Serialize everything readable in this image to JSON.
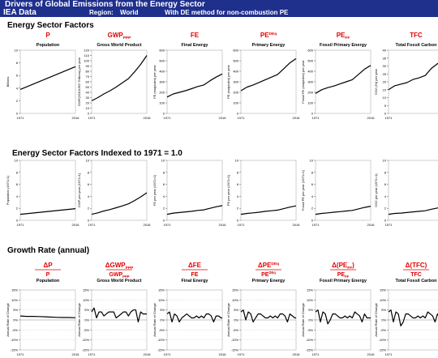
{
  "header": {
    "title": "Drivers of Global Emissions from the Energy Sector",
    "source": "IEA Data",
    "region_label": "Region:",
    "region_value": "World",
    "method": "With DE method for non-combustion PE"
  },
  "sections": {
    "factors": "Energy Sector Factors",
    "indexed": "Energy Sector Factors Indexed to 1971 = 1.0",
    "growth": "Growth Rate (annual)"
  },
  "colors": {
    "header_bg": "#1f2f8c",
    "symbol_red": "#e00000",
    "line": "#000000",
    "zero_line": "#888888"
  },
  "columns": [
    {
      "sym": "P",
      "sub": "",
      "sup": "",
      "name": "Population",
      "g_sym": "P",
      "g_sub": "",
      "g_sup": "",
      "g_pre": "",
      "g_post": ""
    },
    {
      "sym": "GWP",
      "sub": "PPP",
      "sup": "",
      "name": "Gross World Product",
      "g_sym": "GWP",
      "g_sub": "PPP",
      "g_sup": "",
      "g_pre": "",
      "g_post": ""
    },
    {
      "sym": "FE",
      "sub": "",
      "sup": "",
      "name": "Final Energy",
      "g_sym": "FE",
      "g_sub": "",
      "g_sup": "",
      "g_pre": "",
      "g_post": ""
    },
    {
      "sym": "PE",
      "sub": "",
      "sup": "DEq",
      "name": "Primary Energy",
      "g_sym": "PE",
      "g_sub": "",
      "g_sup": "DEq",
      "g_pre": "",
      "g_post": ""
    },
    {
      "sym": "PE",
      "sub": "FF",
      "sup": "",
      "name": "Fossil Primary Energy",
      "g_sym": "PE",
      "g_sub": "FF",
      "g_sup": "",
      "g_pre": "(",
      "g_post": ")"
    },
    {
      "sym": "TFC",
      "sub": "",
      "sup": "",
      "name": "Total Fossil Carbon",
      "g_sym": "TFC",
      "g_sub": "",
      "g_sup": "",
      "g_pre": "(",
      "g_post": ")"
    }
  ],
  "delta": "Δ",
  "chart_data": [
    {
      "type": "line",
      "row": "factors",
      "ylabel": "Billions",
      "ylim": [
        0,
        10
      ],
      "yticks": [
        "0",
        "2",
        "4",
        "6",
        "8",
        "10"
      ],
      "xticks": [
        "1971",
        "2016"
      ],
      "x": [
        1971,
        2016
      ],
      "series": [
        {
          "values": [
            3.8,
            7.4
          ]
        }
      ]
    },
    {
      "type": "line",
      "row": "factors",
      "ylabel": "GWP(2010USD Trillions) per year",
      "ylim": [
        0,
        120
      ],
      "yticks": [
        "0",
        "10",
        "20",
        "30",
        "40",
        "50",
        "60",
        "70",
        "80",
        "90",
        "100",
        "110",
        "120"
      ],
      "xticks": [
        "1971",
        "2016"
      ],
      "x": [
        1971,
        1976,
        1981,
        1986,
        1991,
        1996,
        2001,
        2006,
        2011,
        2016
      ],
      "series": [
        {
          "values": [
            24,
            30,
            37,
            43,
            50,
            58,
            66,
            79,
            93,
            110
          ]
        }
      ]
    },
    {
      "type": "line",
      "row": "factors",
      "ylabel": "FE (exajoules) per year",
      "ylim": [
        0,
        600
      ],
      "yticks": [
        "0",
        "100",
        "200",
        "300",
        "400",
        "500",
        "600"
      ],
      "xticks": [
        "1971",
        "2016"
      ],
      "x": [
        1971,
        1976,
        1981,
        1986,
        1991,
        1996,
        2001,
        2006,
        2011,
        2016
      ],
      "series": [
        {
          "values": [
            155,
            185,
            200,
            215,
            235,
            255,
            270,
            310,
            345,
            375
          ]
        }
      ]
    },
    {
      "type": "line",
      "row": "factors",
      "ylabel": "PE (exajoules) per year",
      "ylim": [
        0,
        600
      ],
      "yticks": [
        "0",
        "100",
        "200",
        "300",
        "400",
        "500",
        "600"
      ],
      "xticks": [
        "1971",
        "2016"
      ],
      "x": [
        1971,
        1976,
        1981,
        1986,
        1991,
        1996,
        2001,
        2006,
        2011,
        2016
      ],
      "series": [
        {
          "values": [
            215,
            250,
            270,
            295,
            320,
            345,
            370,
            425,
            480,
            520
          ]
        }
      ]
    },
    {
      "type": "line",
      "row": "factors",
      "ylabel": "Fossil PE (exajoules) per year",
      "ylim": [
        0,
        600
      ],
      "yticks": [
        "0",
        "100",
        "200",
        "300",
        "400",
        "500",
        "600"
      ],
      "xticks": [
        "1971",
        "2016"
      ],
      "x": [
        1971,
        1976,
        1981,
        1986,
        1991,
        1996,
        2001,
        2006,
        2011,
        2016
      ],
      "series": [
        {
          "values": [
            190,
            225,
            245,
            260,
            280,
            300,
            320,
            370,
            420,
            455
          ]
        }
      ]
    },
    {
      "type": "line",
      "row": "factors",
      "ylabel": "CO2 (Gt) per year",
      "ylim": [
        0,
        40
      ],
      "yticks": [
        "0",
        "5",
        "10",
        "15",
        "20",
        "25",
        "30",
        "35",
        "40"
      ],
      "xticks": [
        "1971",
        "2016"
      ],
      "x": [
        1971,
        1976,
        1981,
        1986,
        1991,
        1996,
        2001,
        2006,
        2011,
        2016
      ],
      "series": [
        {
          "values": [
            15,
            17.5,
            18.5,
            19.5,
            21.5,
            22.5,
            24,
            28.5,
            31.5,
            33
          ]
        }
      ]
    },
    {
      "type": "line",
      "row": "indexed",
      "ylabel": "Population (1971=1)",
      "ylim": [
        0,
        10
      ],
      "yticks": [
        "0",
        "2",
        "4",
        "6",
        "8",
        "10"
      ],
      "xticks": [
        "1971",
        "2016"
      ],
      "x": [
        1971,
        2016
      ],
      "series": [
        {
          "values": [
            1.0,
            1.95
          ]
        }
      ]
    },
    {
      "type": "line",
      "row": "indexed",
      "ylabel": "GWP per year (1971=1)",
      "ylim": [
        0,
        10
      ],
      "yticks": [
        "0",
        "2",
        "4",
        "6",
        "8",
        "10"
      ],
      "xticks": [
        "1971",
        "2016"
      ],
      "x": [
        1971,
        1976,
        1981,
        1986,
        1991,
        1996,
        2001,
        2006,
        2011,
        2016
      ],
      "series": [
        {
          "values": [
            1.0,
            1.25,
            1.55,
            1.8,
            2.1,
            2.4,
            2.75,
            3.3,
            3.9,
            4.6
          ]
        }
      ]
    },
    {
      "type": "line",
      "row": "indexed",
      "ylabel": "FE per year (1971=1)",
      "ylim": [
        0,
        10
      ],
      "yticks": [
        "0",
        "2",
        "4",
        "6",
        "8",
        "10"
      ],
      "xticks": [
        "1971",
        "2016"
      ],
      "x": [
        1971,
        1976,
        1981,
        1986,
        1991,
        1996,
        2001,
        2006,
        2011,
        2016
      ],
      "series": [
        {
          "values": [
            1.0,
            1.2,
            1.3,
            1.4,
            1.5,
            1.65,
            1.75,
            2.0,
            2.25,
            2.45
          ]
        }
      ]
    },
    {
      "type": "line",
      "row": "indexed",
      "ylabel": "PE per year (1971=1)",
      "ylim": [
        0,
        10
      ],
      "yticks": [
        "0",
        "2",
        "4",
        "6",
        "8",
        "10"
      ],
      "xticks": [
        "1971",
        "2016"
      ],
      "x": [
        1971,
        1976,
        1981,
        1986,
        1991,
        1996,
        2001,
        2006,
        2011,
        2016
      ],
      "series": [
        {
          "values": [
            1.0,
            1.15,
            1.25,
            1.35,
            1.5,
            1.6,
            1.7,
            1.95,
            2.2,
            2.4
          ]
        }
      ]
    },
    {
      "type": "line",
      "row": "indexed",
      "ylabel": "Fossil PE per year (1971=1)",
      "ylim": [
        0,
        10
      ],
      "yticks": [
        "0",
        "2",
        "4",
        "6",
        "8",
        "10"
      ],
      "xticks": [
        "1971",
        "2016"
      ],
      "x": [
        1971,
        1976,
        1981,
        1986,
        1991,
        1996,
        2001,
        2006,
        2011,
        2016
      ],
      "series": [
        {
          "values": [
            1.0,
            1.15,
            1.25,
            1.35,
            1.45,
            1.55,
            1.65,
            1.9,
            2.15,
            2.35
          ]
        }
      ]
    },
    {
      "type": "line",
      "row": "indexed",
      "ylabel": "CO2 per year (1971=1)",
      "ylim": [
        0,
        10
      ],
      "yticks": [
        "0",
        "2",
        "4",
        "6",
        "8",
        "10"
      ],
      "xticks": [
        "1971",
        "2016"
      ],
      "x": [
        1971,
        1976,
        1981,
        1986,
        1991,
        1996,
        2001,
        2006,
        2011,
        2016
      ],
      "series": [
        {
          "values": [
            1.0,
            1.15,
            1.2,
            1.3,
            1.4,
            1.5,
            1.6,
            1.85,
            2.05,
            2.2
          ]
        }
      ]
    },
    {
      "type": "line",
      "row": "growth",
      "ylabel": "Annual Rate of Change",
      "ylim": [
        -15,
        15
      ],
      "yticks": [
        "-15%",
        "-10%",
        "-5%",
        "0%",
        "5%",
        "10%",
        "15%"
      ],
      "xticks": [
        "1971",
        "2016"
      ],
      "x": [
        1971,
        1976,
        1981,
        1986,
        1991,
        1996,
        2001,
        2006,
        2011,
        2016
      ],
      "series": [
        {
          "values": [
            2.0,
            1.8,
            1.8,
            1.7,
            1.6,
            1.4,
            1.3,
            1.2,
            1.2,
            1.1
          ]
        }
      ]
    },
    {
      "type": "line",
      "row": "growth",
      "ylabel": "Annual Rate of Change",
      "ylim": [
        -15,
        15
      ],
      "yticks": [
        "-15%",
        "-10%",
        "-5%",
        "0%",
        "5%",
        "10%",
        "15%"
      ],
      "xticks": [
        "1971",
        "2016"
      ],
      "x": [
        1971,
        1973,
        1975,
        1977,
        1979,
        1981,
        1983,
        1985,
        1987,
        1989,
        1991,
        1993,
        1995,
        1997,
        1999,
        2001,
        2003,
        2005,
        2007,
        2009,
        2011,
        2013,
        2015,
        2016
      ],
      "series": [
        {
          "values": [
            4,
            6,
            1,
            4,
            4,
            2,
            3,
            4,
            4,
            4,
            1,
            2,
            3,
            4,
            4,
            2,
            4,
            5,
            5,
            -1,
            4,
            3,
            3,
            3
          ]
        }
      ]
    },
    {
      "type": "line",
      "row": "growth",
      "ylabel": "Annual Rate of Change",
      "ylim": [
        -15,
        15
      ],
      "yticks": [
        "-15%",
        "-10%",
        "-5%",
        "0%",
        "5%",
        "10%",
        "15%"
      ],
      "xticks": [
        "1971",
        "2016"
      ],
      "x": [
        1971,
        1973,
        1975,
        1977,
        1979,
        1981,
        1983,
        1985,
        1987,
        1989,
        1991,
        1993,
        1995,
        1997,
        1999,
        2001,
        2003,
        2005,
        2007,
        2009,
        2011,
        2013,
        2015,
        2016
      ],
      "series": [
        {
          "values": [
            3,
            4,
            -1,
            3,
            2,
            -1,
            1,
            2,
            3,
            2,
            1,
            1,
            2,
            1,
            2,
            1,
            3,
            3,
            2,
            -1,
            2,
            2,
            1,
            1
          ]
        }
      ]
    },
    {
      "type": "line",
      "row": "growth",
      "ylabel": "Annual Rate of Change",
      "ylim": [
        -15,
        15
      ],
      "yticks": [
        "-15%",
        "-10%",
        "-5%",
        "0%",
        "5%",
        "10%",
        "15%"
      ],
      "xticks": [
        "1971",
        "2016"
      ],
      "x": [
        1971,
        1973,
        1975,
        1977,
        1979,
        1981,
        1983,
        1985,
        1987,
        1989,
        1991,
        1993,
        1995,
        1997,
        1999,
        2001,
        2003,
        2005,
        2007,
        2009,
        2011,
        2013,
        2015,
        2016
      ],
      "series": [
        {
          "values": [
            4,
            5,
            0,
            4,
            3,
            -1,
            1,
            3,
            3,
            2,
            1,
            1,
            2,
            1,
            2,
            1,
            3,
            3,
            2,
            -1,
            3,
            2,
            1,
            1
          ]
        }
      ]
    },
    {
      "type": "line",
      "row": "growth",
      "ylabel": "Annual Rate of Change",
      "ylim": [
        -15,
        15
      ],
      "yticks": [
        "-15%",
        "-10%",
        "-5%",
        "0%",
        "5%",
        "10%",
        "15%"
      ],
      "xticks": [
        "1971",
        "2016"
      ],
      "x": [
        1971,
        1973,
        1975,
        1977,
        1979,
        1981,
        1983,
        1985,
        1987,
        1989,
        1991,
        1993,
        1995,
        1997,
        1999,
        2001,
        2003,
        2005,
        2007,
        2009,
        2011,
        2013,
        2015,
        2016
      ],
      "series": [
        {
          "values": [
            4,
            5,
            -1,
            4,
            3,
            -2,
            0,
            3,
            3,
            2,
            1,
            1,
            2,
            1,
            2,
            1,
            4,
            3,
            2,
            -1,
            3,
            1,
            1,
            1
          ]
        }
      ]
    },
    {
      "type": "line",
      "row": "growth",
      "ylabel": "Annual Rate of Change",
      "ylim": [
        -15,
        15
      ],
      "yticks": [
        "-15%",
        "-10%",
        "-5%",
        "0%",
        "5%",
        "10%",
        "15%"
      ],
      "xticks": [
        "1971",
        "2016"
      ],
      "x": [
        1971,
        1973,
        1975,
        1977,
        1979,
        1981,
        1983,
        1985,
        1987,
        1989,
        1991,
        1993,
        1995,
        1997,
        1999,
        2001,
        2003,
        2005,
        2007,
        2009,
        2011,
        2013,
        2015,
        2016
      ],
      "series": [
        {
          "values": [
            4,
            5,
            -1,
            4,
            3,
            -3,
            -1,
            3,
            3,
            2,
            1,
            1,
            2,
            1,
            2,
            1,
            4,
            3,
            2,
            -1,
            3,
            1,
            0,
            1
          ]
        }
      ]
    }
  ]
}
